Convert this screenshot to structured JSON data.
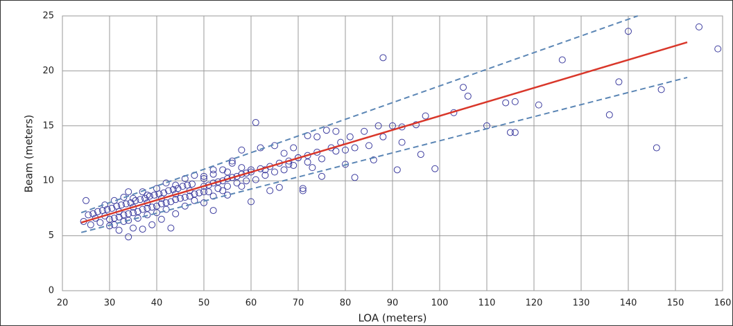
{
  "chart_data": {
    "type": "scatter",
    "x_label": "LOA (meters)",
    "y_label": "Beam (meters)",
    "xlim": [
      20,
      160
    ],
    "ylim": [
      0,
      25
    ],
    "xticks": [
      20,
      30,
      40,
      50,
      60,
      70,
      80,
      90,
      100,
      110,
      120,
      130,
      140,
      150,
      160
    ],
    "yticks": [
      0,
      5,
      10,
      15,
      20,
      25
    ],
    "grid": true,
    "series": [
      {
        "color": "#3b3b9e",
        "x": [
          25.5,
          26.5,
          27.5,
          28.5,
          29.5,
          30.5,
          31.5,
          32.5,
          33.5,
          34.5,
          35.5,
          36.5,
          37.5,
          38.5,
          39.5,
          40.5,
          41.5,
          42.5,
          43.5,
          44.5,
          45.5,
          46.5,
          47.5,
          26,
          28,
          30,
          31,
          32,
          33,
          34,
          35,
          36,
          37,
          38,
          39,
          40,
          41,
          42,
          43,
          44,
          45,
          46,
          47,
          48,
          49,
          50,
          30,
          31,
          32,
          33,
          34,
          35,
          36,
          37,
          38,
          39,
          40,
          41,
          42,
          44,
          46,
          48,
          50,
          52,
          54,
          29,
          31,
          33,
          34,
          35,
          37,
          38,
          40,
          42,
          44,
          46,
          48,
          50,
          52,
          54,
          56,
          58,
          24.5,
          27,
          29,
          32,
          35,
          38,
          41,
          44,
          47,
          50,
          51,
          52,
          53,
          54,
          55,
          56,
          57,
          58,
          59,
          60,
          62,
          64,
          66,
          68,
          70,
          72,
          74,
          51,
          53,
          55,
          57,
          59,
          61,
          63,
          65,
          67,
          69,
          72,
          75,
          77,
          79,
          81,
          88,
          155,
          159,
          140,
          126,
          138,
          147,
          146,
          136,
          116,
          114,
          121,
          115,
          116,
          106,
          105,
          110,
          103,
          99,
          91,
          92,
          95,
          97,
          96,
          90,
          92,
          88,
          87,
          85,
          84,
          82,
          80,
          80,
          78,
          76,
          74,
          72,
          71,
          71,
          73,
          75,
          82,
          86,
          78,
          61,
          62,
          65,
          67,
          69,
          63,
          66,
          64,
          60,
          70,
          68,
          60,
          58,
          56,
          55,
          52,
          50,
          58,
          55,
          52,
          43,
          34,
          25
        ],
        "values": [
          6.9,
          7.0,
          7.2,
          7.3,
          7.4,
          7.5,
          7.7,
          7.8,
          7.9,
          8.0,
          8.2,
          8.3,
          8.4,
          8.6,
          8.7,
          8.8,
          8.9,
          9.1,
          9.2,
          9.3,
          9.5,
          9.6,
          9.7,
          6.0,
          6.2,
          6.5,
          6.6,
          6.7,
          6.9,
          7.0,
          7.1,
          7.2,
          7.4,
          7.5,
          7.6,
          7.7,
          7.9,
          8.0,
          8.1,
          8.3,
          8.4,
          8.5,
          8.6,
          8.8,
          8.9,
          9.0,
          5.9,
          6.0,
          5.5,
          6.3,
          6.4,
          5.7,
          6.6,
          5.6,
          6.9,
          6.0,
          7.1,
          6.5,
          7.4,
          7.0,
          7.7,
          8.2,
          8.0,
          8.6,
          9.1,
          7.8,
          8.2,
          8.5,
          9.0,
          8.4,
          9.0,
          8.7,
          9.3,
          9.8,
          9.6,
          10.2,
          10.5,
          10.4,
          10.6,
          11.0,
          11.6,
          11.2,
          6.3,
          6.6,
          6.8,
          7.2,
          7.6,
          8.0,
          8.4,
          8.8,
          9.1,
          9.5,
          9.6,
          9.8,
          9.9,
          10.0,
          10.2,
          10.3,
          10.4,
          10.6,
          10.7,
          10.8,
          11.1,
          11.3,
          11.6,
          11.8,
          12.1,
          12.3,
          12.6,
          9.0,
          9.3,
          9.5,
          9.8,
          10.0,
          10.1,
          10.5,
          10.8,
          11.0,
          11.4,
          11.7,
          12.0,
          13.0,
          13.5,
          14.0,
          21.2,
          24,
          22,
          23.6,
          21,
          19,
          18.3,
          13,
          16,
          17.2,
          17.1,
          16.9,
          14.4,
          14.4,
          17.7,
          18.5,
          15,
          16.2,
          11.1,
          11,
          14.9,
          15.1,
          15.9,
          12.4,
          15,
          13.5,
          14,
          15,
          13.2,
          14.5,
          13,
          12.8,
          11.5,
          12.7,
          14.6,
          14,
          14.1,
          9.3,
          9.1,
          11.2,
          10.4,
          10.3,
          11.9,
          14.5,
          15.3,
          13,
          13.2,
          12.5,
          13,
          11,
          9.4,
          9.1,
          8.1,
          12.1,
          11.5,
          11,
          12.8,
          11.8,
          10.8,
          11,
          10.2,
          9.5,
          8.7,
          7.3,
          5.7,
          4.9,
          8.2
        ]
      }
    ],
    "lines": [
      {
        "x": [
          24,
          152.5
        ],
        "values": [
          6.2,
          22.6
        ],
        "color": "#d9372a",
        "dashed": false
      },
      {
        "x": [
          24,
          142
        ],
        "values": [
          7.1,
          25
        ],
        "color": "#5b86b5",
        "dashed": true
      },
      {
        "x": [
          24,
          152.5
        ],
        "values": [
          5.3,
          19.4
        ],
        "color": "#5b86b5",
        "dashed": true
      }
    ]
  }
}
